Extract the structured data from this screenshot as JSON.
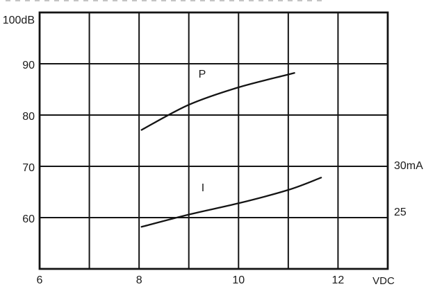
{
  "figure": {
    "background": "#ffffff",
    "line_color": "#141414",
    "text_color": "#1a1a1a"
  },
  "labels": {
    "y_left_ticks": [
      {
        "value": 100,
        "label": "100dB"
      },
      {
        "value": 90,
        "label": "90"
      },
      {
        "value": 80,
        "label": "80"
      },
      {
        "value": 70,
        "label": "70"
      },
      {
        "value": 60,
        "label": "60"
      }
    ],
    "y_right_ticks": [
      {
        "mA": 30,
        "label": "30mA",
        "at_dB": 70
      },
      {
        "mA": 25,
        "label": "25",
        "at_dB": 60
      }
    ],
    "x_ticks": [
      {
        "value": 6,
        "label": "6"
      },
      {
        "value": 8,
        "label": "8"
      },
      {
        "value": 10,
        "label": "10"
      },
      {
        "value": 12,
        "label": "12"
      }
    ],
    "x_unit": "VDC",
    "curve_p": "P",
    "curve_i": "I"
  },
  "chart_data": {
    "type": "line",
    "title": "",
    "xlabel": "VDC",
    "x_range": [
      6,
      13
    ],
    "x_gridline_step": 1,
    "x_tick_values": [
      6,
      8,
      10,
      12
    ],
    "y_left_axis": {
      "unit": "dB",
      "range_top": 100,
      "range_bottom": 50,
      "gridline_step": 10,
      "tick_labels": [
        "100dB",
        "90",
        "80",
        "70",
        "60"
      ]
    },
    "y_right_axis": {
      "unit": "mA",
      "tick_labels": [
        "30mA",
        "25"
      ],
      "mA_30_aligned_with_dB": 70,
      "mA_25_aligned_with_dB": 60,
      "scale": "1 mA per 2 dB"
    },
    "grid": true,
    "legend_position": "inline-curve-labels",
    "series": [
      {
        "name": "P",
        "axis": "left",
        "unit": "dB",
        "points": [
          [
            8.05,
            77.1
          ],
          [
            9.0,
            82.0
          ],
          [
            10.0,
            85.4
          ],
          [
            11.0,
            87.9
          ],
          [
            11.12,
            88.2
          ]
        ]
      },
      {
        "name": "I",
        "axis": "right",
        "unit": "mA",
        "points": [
          [
            8.05,
            24.1
          ],
          [
            9.0,
            25.3
          ],
          [
            10.0,
            26.4
          ],
          [
            11.0,
            27.7
          ],
          [
            11.66,
            28.9
          ]
        ]
      }
    ]
  }
}
